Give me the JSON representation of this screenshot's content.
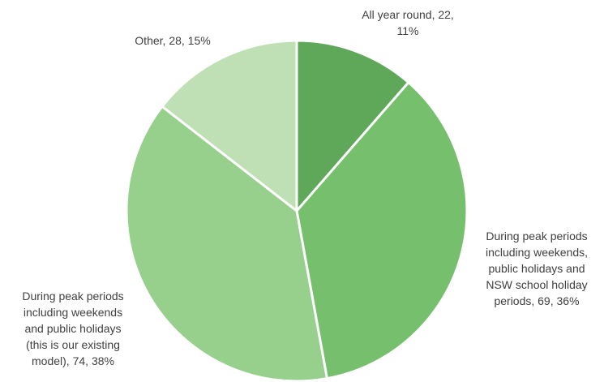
{
  "chart_data": {
    "type": "pie",
    "title": "",
    "slices": [
      {
        "label": "All year round",
        "value": 22,
        "percent": 11,
        "color": "#5fa85a",
        "label_text": "All year round, 22,\n11%"
      },
      {
        "label": "During peak periods including weekends, public holidays and NSW school holiday periods",
        "value": 69,
        "percent": 36,
        "color": "#76bf6c",
        "label_text": "During peak periods\nincluding weekends,\npublic holidays and\nNSW school holiday\nperiods, 69, 36%"
      },
      {
        "label": "During peak periods including weekends and public holidays (this is our existing model)",
        "value": 74,
        "percent": 38,
        "color": "#97cf8c",
        "label_text": "During peak periods\nincluding weekends\nand public holidays\n(this is our existing\nmodel), 74, 38%"
      },
      {
        "label": "Other",
        "value": 28,
        "percent": 15,
        "color": "#bfe0b5",
        "label_text": "Other, 28, 15%"
      }
    ],
    "legend": "none",
    "data_labels": "outside"
  }
}
